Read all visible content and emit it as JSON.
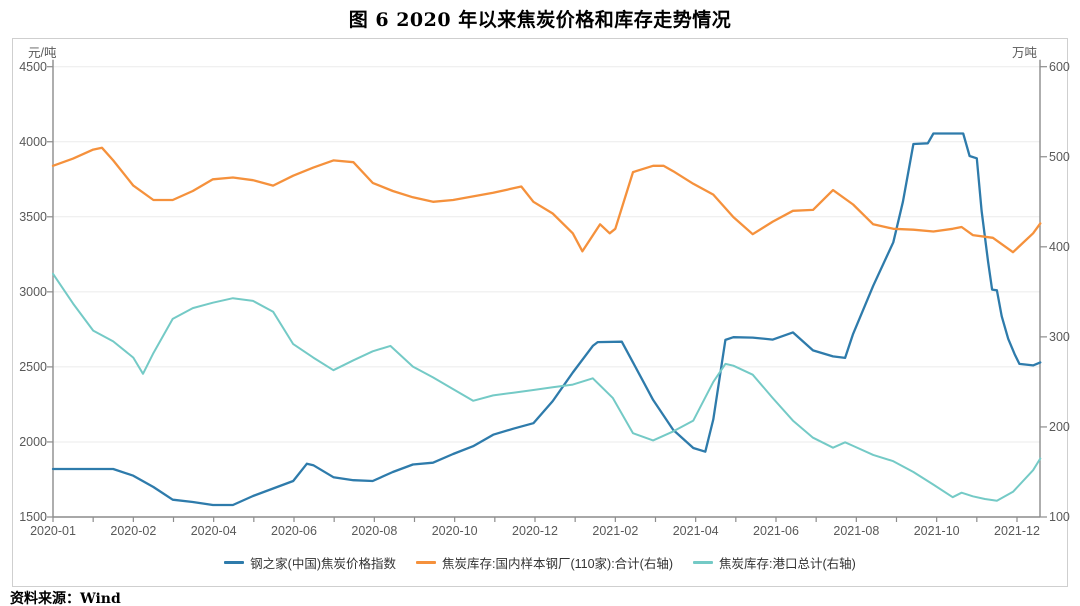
{
  "title": "图 6  2020 年以来焦炭价格和库存走势情况",
  "source_note": "资料来源：Wind",
  "chart_data": {
    "type": "line",
    "title": "图 6  2020 年以来焦炭价格和库存走势情况",
    "grid": "horizontal",
    "legend_position": "bottom",
    "left_axis": {
      "unit": "元/吨",
      "min": 1500,
      "max": 4500,
      "ticks": [
        1500,
        2000,
        2500,
        3000,
        3500,
        4000,
        4500
      ]
    },
    "right_axis": {
      "unit": "万吨",
      "min": 100,
      "max": 600,
      "ticks": [
        100,
        200,
        300,
        400,
        500,
        600
      ]
    },
    "x_ticks": {
      "labels": [
        "2020-01",
        "2020-02",
        "2020-04",
        "2020-06",
        "2020-08",
        "2020-10",
        "2020-12",
        "2021-02",
        "2021-04",
        "2021-06",
        "2021-08",
        "2021-10",
        "2021-12"
      ],
      "positions": [
        0,
        1,
        2,
        3,
        4,
        5,
        6,
        7,
        8,
        9,
        10,
        11,
        12
      ],
      "note": "x values of series points are in tick-index units: 0 = 2020-01 tick, 12 = 2021-12 tick"
    },
    "series": [
      {
        "name": "钢之家(中国)焦炭价格指数",
        "axis": "left",
        "unit": "元/吨",
        "color": "#2e7bab",
        "points": [
          [
            0,
            1820
          ],
          [
            0.25,
            1820
          ],
          [
            0.5,
            1820
          ],
          [
            0.75,
            1820
          ],
          [
            1,
            1775
          ],
          [
            1.25,
            1700
          ],
          [
            1.49,
            1615
          ],
          [
            1.74,
            1600
          ],
          [
            1.99,
            1580
          ],
          [
            2.24,
            1580
          ],
          [
            2.49,
            1640
          ],
          [
            2.74,
            1690
          ],
          [
            2.99,
            1740
          ],
          [
            3.16,
            1855
          ],
          [
            3.24,
            1845
          ],
          [
            3.49,
            1765
          ],
          [
            3.74,
            1745
          ],
          [
            3.98,
            1740
          ],
          [
            4.23,
            1800
          ],
          [
            4.48,
            1850
          ],
          [
            4.73,
            1862
          ],
          [
            4.98,
            1920
          ],
          [
            5.23,
            1972
          ],
          [
            5.48,
            2048
          ],
          [
            5.73,
            2088
          ],
          [
            5.98,
            2125
          ],
          [
            6.22,
            2272
          ],
          [
            6.47,
            2463
          ],
          [
            6.72,
            2640
          ],
          [
            6.78,
            2665
          ],
          [
            7.08,
            2668
          ],
          [
            7.22,
            2530
          ],
          [
            7.47,
            2280
          ],
          [
            7.72,
            2080
          ],
          [
            7.97,
            1960
          ],
          [
            8.12,
            1935
          ],
          [
            8.22,
            2150
          ],
          [
            8.37,
            2680
          ],
          [
            8.47,
            2698
          ],
          [
            8.71,
            2695
          ],
          [
            8.96,
            2682
          ],
          [
            9.21,
            2730
          ],
          [
            9.46,
            2610
          ],
          [
            9.71,
            2570
          ],
          [
            9.86,
            2560
          ],
          [
            9.96,
            2720
          ],
          [
            10.21,
            3040
          ],
          [
            10.46,
            3330
          ],
          [
            10.58,
            3600
          ],
          [
            10.71,
            3985
          ],
          [
            10.89,
            3990
          ],
          [
            10.96,
            4055
          ],
          [
            11.33,
            4055
          ],
          [
            11.41,
            3905
          ],
          [
            11.5,
            3890
          ],
          [
            11.56,
            3540
          ],
          [
            11.64,
            3200
          ],
          [
            11.69,
            3015
          ],
          [
            11.75,
            3010
          ],
          [
            11.81,
            2838
          ],
          [
            11.89,
            2687
          ],
          [
            11.97,
            2585
          ],
          [
            12.03,
            2520
          ],
          [
            12.2,
            2510
          ],
          [
            12.29,
            2530
          ]
        ]
      },
      {
        "name": "焦炭库存:国内样本钢厂(110家):合计(右轴)",
        "axis": "right",
        "unit": "万吨",
        "color": "#f5913c",
        "points": [
          [
            0,
            490
          ],
          [
            0.25,
            498
          ],
          [
            0.5,
            508
          ],
          [
            0.61,
            510
          ],
          [
            0.75,
            496
          ],
          [
            1,
            468
          ],
          [
            1.25,
            452
          ],
          [
            1.49,
            452
          ],
          [
            1.74,
            462
          ],
          [
            1.99,
            475
          ],
          [
            2.24,
            477
          ],
          [
            2.49,
            474
          ],
          [
            2.74,
            468
          ],
          [
            2.99,
            479
          ],
          [
            3.24,
            488
          ],
          [
            3.49,
            496
          ],
          [
            3.74,
            494
          ],
          [
            3.98,
            471
          ],
          [
            4.23,
            462
          ],
          [
            4.48,
            455
          ],
          [
            4.73,
            450
          ],
          [
            4.98,
            452
          ],
          [
            5.23,
            456
          ],
          [
            5.48,
            460
          ],
          [
            5.73,
            465
          ],
          [
            5.83,
            467
          ],
          [
            5.98,
            450
          ],
          [
            6.22,
            437
          ],
          [
            6.47,
            415
          ],
          [
            6.59,
            395
          ],
          [
            6.81,
            425
          ],
          [
            6.93,
            415
          ],
          [
            7,
            420
          ],
          [
            7.22,
            483
          ],
          [
            7.47,
            490
          ],
          [
            7.6,
            490
          ],
          [
            7.72,
            484
          ],
          [
            7.97,
            470
          ],
          [
            8.22,
            458
          ],
          [
            8.47,
            433
          ],
          [
            8.71,
            414
          ],
          [
            8.96,
            428
          ],
          [
            9.21,
            440
          ],
          [
            9.46,
            441
          ],
          [
            9.71,
            463
          ],
          [
            9.96,
            447
          ],
          [
            10.21,
            425
          ],
          [
            10.46,
            420
          ],
          [
            10.71,
            419
          ],
          [
            10.96,
            417
          ],
          [
            11.2,
            420
          ],
          [
            11.31,
            422
          ],
          [
            11.45,
            413
          ],
          [
            11.7,
            410
          ],
          [
            11.95,
            394
          ],
          [
            12.2,
            415
          ],
          [
            12.29,
            426
          ]
        ]
      },
      {
        "name": "焦炭库存:港口总计(右轴)",
        "axis": "right",
        "unit": "万吨",
        "color": "#74cac6",
        "points": [
          [
            0,
            370
          ],
          [
            0.25,
            337
          ],
          [
            0.5,
            307
          ],
          [
            0.75,
            295
          ],
          [
            1,
            277
          ],
          [
            1.12,
            259
          ],
          [
            1.25,
            282
          ],
          [
            1.49,
            320
          ],
          [
            1.74,
            332
          ],
          [
            1.99,
            338
          ],
          [
            2.24,
            343
          ],
          [
            2.49,
            340
          ],
          [
            2.74,
            328
          ],
          [
            2.99,
            292
          ],
          [
            3.24,
            277
          ],
          [
            3.49,
            263
          ],
          [
            3.74,
            274
          ],
          [
            3.98,
            284
          ],
          [
            4.2,
            290
          ],
          [
            4.48,
            267
          ],
          [
            4.73,
            255
          ],
          [
            4.98,
            242
          ],
          [
            5.23,
            229
          ],
          [
            5.48,
            235
          ],
          [
            5.73,
            238
          ],
          [
            5.98,
            241
          ],
          [
            6.22,
            244
          ],
          [
            6.47,
            247
          ],
          [
            6.72,
            254
          ],
          [
            6.97,
            232
          ],
          [
            7.22,
            193
          ],
          [
            7.47,
            185
          ],
          [
            7.72,
            195
          ],
          [
            7.97,
            207
          ],
          [
            8.22,
            250
          ],
          [
            8.37,
            270
          ],
          [
            8.47,
            268
          ],
          [
            8.71,
            258
          ],
          [
            8.96,
            232
          ],
          [
            9.21,
            207
          ],
          [
            9.46,
            188
          ],
          [
            9.71,
            177
          ],
          [
            9.86,
            183
          ],
          [
            9.96,
            179
          ],
          [
            10.21,
            169
          ],
          [
            10.46,
            162
          ],
          [
            10.71,
            150
          ],
          [
            10.96,
            136
          ],
          [
            11.2,
            122
          ],
          [
            11.31,
            127
          ],
          [
            11.45,
            123
          ],
          [
            11.6,
            120
          ],
          [
            11.75,
            118
          ],
          [
            11.95,
            128
          ],
          [
            12.2,
            152
          ],
          [
            12.29,
            165
          ]
        ]
      }
    ]
  }
}
